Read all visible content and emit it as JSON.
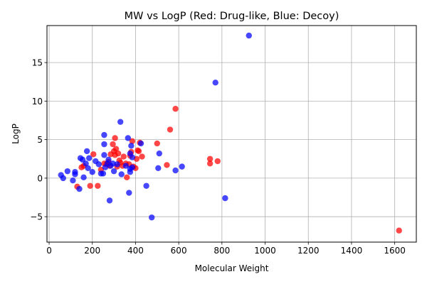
{
  "chart_data": {
    "type": "scatter",
    "title": "MW vs LogP (Red: Drug-like, Blue: Decoy)",
    "xlabel": "Molecular Weight",
    "ylabel": "LogP",
    "xlim": [
      -10,
      1700
    ],
    "ylim": [
      -8.3,
      19.8
    ],
    "xticks": [
      0,
      200,
      400,
      600,
      800,
      1000,
      1200,
      1400,
      1600
    ],
    "yticks": [
      -5,
      0,
      5,
      10,
      15
    ],
    "grid": true,
    "legend": "none",
    "series": [
      {
        "color": "#ff0000",
        "points": [
          [
            130,
            -1.1
          ],
          [
            150,
            1.4
          ],
          [
            160,
            1.6
          ],
          [
            190,
            -1.0
          ],
          [
            205,
            3.1
          ],
          [
            225,
            -1.0
          ],
          [
            240,
            1.1
          ],
          [
            255,
            1.9
          ],
          [
            265,
            1.8
          ],
          [
            275,
            2.1
          ],
          [
            280,
            1.6
          ],
          [
            285,
            3.1
          ],
          [
            295,
            4.4
          ],
          [
            300,
            3.5
          ],
          [
            305,
            5.2
          ],
          [
            305,
            3.0
          ],
          [
            310,
            3.8
          ],
          [
            315,
            1.5
          ],
          [
            320,
            3.2
          ],
          [
            325,
            2.3
          ],
          [
            330,
            2.0
          ],
          [
            340,
            1.6
          ],
          [
            345,
            2.8
          ],
          [
            355,
            1.9
          ],
          [
            360,
            0.1
          ],
          [
            370,
            1.8
          ],
          [
            375,
            2.9
          ],
          [
            380,
            3.4
          ],
          [
            385,
            4.8
          ],
          [
            390,
            1.5
          ],
          [
            400,
            1.3
          ],
          [
            405,
            2.5
          ],
          [
            410,
            3.6
          ],
          [
            415,
            3.5
          ],
          [
            420,
            4.6
          ],
          [
            430,
            2.8
          ],
          [
            500,
            4.5
          ],
          [
            545,
            1.7
          ],
          [
            560,
            6.3
          ],
          [
            585,
            9.0
          ],
          [
            745,
            2.5
          ],
          [
            745,
            1.9
          ],
          [
            780,
            2.2
          ],
          [
            1620,
            -6.8
          ]
        ]
      },
      {
        "color": "#0000ff",
        "points": [
          [
            55,
            0.4
          ],
          [
            65,
            0.0
          ],
          [
            85,
            0.9
          ],
          [
            110,
            -0.3
          ],
          [
            120,
            0.8
          ],
          [
            120,
            0.5
          ],
          [
            140,
            -1.4
          ],
          [
            145,
            2.6
          ],
          [
            155,
            2.4
          ],
          [
            160,
            0.1
          ],
          [
            170,
            1.9
          ],
          [
            175,
            3.5
          ],
          [
            180,
            1.3
          ],
          [
            185,
            2.6
          ],
          [
            200,
            0.8
          ],
          [
            215,
            2.2
          ],
          [
            230,
            1.8
          ],
          [
            240,
            0.6
          ],
          [
            250,
            0.6
          ],
          [
            255,
            5.6
          ],
          [
            255,
            4.4
          ],
          [
            255,
            3.0
          ],
          [
            260,
            1.4
          ],
          [
            270,
            1.9
          ],
          [
            275,
            2.4
          ],
          [
            280,
            -2.9
          ],
          [
            285,
            1.6
          ],
          [
            295,
            1.9
          ],
          [
            300,
            0.9
          ],
          [
            315,
            1.8
          ],
          [
            330,
            7.3
          ],
          [
            335,
            0.5
          ],
          [
            355,
            1.6
          ],
          [
            365,
            5.2
          ],
          [
            370,
            -1.9
          ],
          [
            375,
            1.2
          ],
          [
            375,
            0.8
          ],
          [
            375,
            3.2
          ],
          [
            380,
            4.2
          ],
          [
            385,
            1.4
          ],
          [
            385,
            2.7
          ],
          [
            425,
            4.5
          ],
          [
            450,
            -1.0
          ],
          [
            475,
            -5.1
          ],
          [
            505,
            1.3
          ],
          [
            510,
            3.2
          ],
          [
            585,
            1.0
          ],
          [
            615,
            1.5
          ],
          [
            770,
            12.4
          ],
          [
            815,
            -2.6
          ],
          [
            925,
            18.5
          ]
        ]
      }
    ]
  }
}
